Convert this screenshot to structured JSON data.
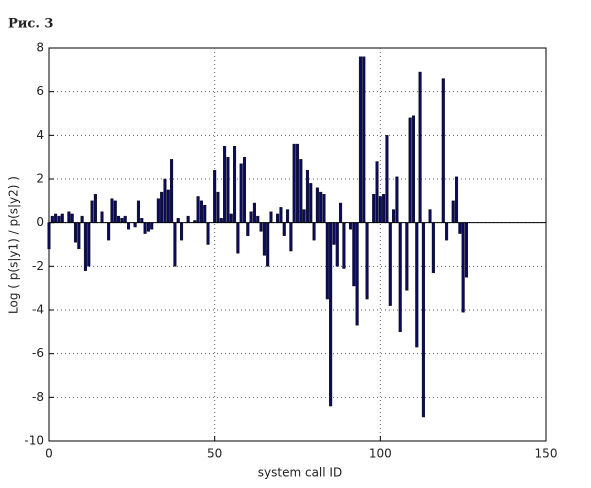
{
  "chart_data": {
    "type": "bar",
    "title": "Рис. 3",
    "x_label": "system call ID",
    "y_label": "Log ( p(s|y1) / p(s|y2) )",
    "x": [
      0,
      1,
      2,
      3,
      4,
      5,
      6,
      7,
      8,
      9,
      10,
      11,
      12,
      13,
      14,
      15,
      16,
      17,
      18,
      19,
      20,
      21,
      22,
      23,
      24,
      25,
      26,
      27,
      28,
      29,
      30,
      31,
      32,
      33,
      34,
      35,
      36,
      37,
      38,
      39,
      40,
      41,
      42,
      43,
      44,
      45,
      46,
      47,
      48,
      49,
      50,
      51,
      52,
      53,
      54,
      55,
      56,
      57,
      58,
      59,
      60,
      61,
      62,
      63,
      64,
      65,
      66,
      67,
      68,
      69,
      70,
      71,
      72,
      73,
      74,
      75,
      76,
      77,
      78,
      79,
      80,
      81,
      82,
      83,
      84,
      85,
      86,
      87,
      88,
      89,
      90,
      91,
      92,
      93,
      94,
      95,
      96,
      97,
      98,
      99,
      100,
      101,
      102,
      103,
      104,
      105,
      106,
      107,
      108,
      109,
      110,
      111,
      112,
      113,
      114,
      115,
      116,
      117,
      118,
      119,
      120,
      121,
      122,
      123,
      124,
      125,
      126
    ],
    "values": [
      -1.2,
      0.3,
      0.4,
      0.3,
      0.4,
      0,
      0.5,
      0.4,
      -0.9,
      -1.2,
      0.3,
      -2.2,
      -2.0,
      1.0,
      1.3,
      0,
      0.5,
      0,
      -0.8,
      1.1,
      1.0,
      0.3,
      0.2,
      0.3,
      -0.3,
      0,
      -0.2,
      1.0,
      0.2,
      -0.5,
      -0.4,
      -0.3,
      0,
      1.1,
      1.4,
      2.0,
      1.5,
      2.9,
      -2.0,
      0.2,
      -0.8,
      0,
      0.3,
      0,
      0.1,
      1.2,
      1.0,
      0.8,
      -1.0,
      0,
      2.4,
      1.4,
      0.2,
      3.5,
      3.0,
      0.4,
      3.5,
      -1.4,
      2.7,
      3.0,
      -0.6,
      0.5,
      0.9,
      0.3,
      -0.4,
      -1.5,
      -2.0,
      0.5,
      0,
      0.4,
      0.7,
      -0.6,
      0.6,
      -1.3,
      3.6,
      3.6,
      2.9,
      0.6,
      2.4,
      1.8,
      -0.8,
      1.6,
      1.4,
      1.3,
      -3.5,
      -8.4,
      -1.0,
      -2.0,
      0.9,
      -2.1,
      0,
      -0.3,
      -2.9,
      -4.7,
      7.6,
      7.6,
      -3.5,
      0,
      1.3,
      2.8,
      1.2,
      1.3,
      4.0,
      -3.8,
      0.6,
      2.1,
      -5.0,
      0,
      -3.1,
      4.8,
      4.9,
      -5.7,
      6.9,
      -8.9,
      0,
      0.6,
      -2.3,
      0,
      0,
      6.6,
      -0.8,
      0,
      1.0,
      2.1,
      -0.5,
      -4.1,
      -2.5
    ],
    "color": "#0b0b5e",
    "xlim": [
      0,
      150
    ],
    "xticks": [
      0,
      50,
      100,
      150
    ],
    "ylim": [
      -10,
      8
    ],
    "yticks": [
      -10,
      -8,
      -6,
      -4,
      -2,
      0,
      2,
      4,
      6,
      8
    ],
    "grid": true
  }
}
